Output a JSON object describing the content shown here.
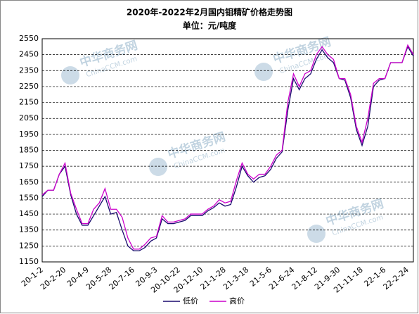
{
  "chart_data": {
    "type": "line",
    "title": "2020年-2022年2月国内钼精矿价格走势图",
    "subtitle": "单位：元/吨度",
    "watermark": {
      "name": "中华商务网",
      "site": "ChinaCCM.com"
    },
    "categories": [
      "20-1-2",
      null,
      null,
      null,
      "20-2-20",
      null,
      null,
      null,
      "20-4-9",
      null,
      null,
      null,
      "20-5-28",
      null,
      null,
      null,
      "20-7-16",
      null,
      null,
      null,
      "20-9-3",
      null,
      null,
      null,
      "20-10-22",
      null,
      null,
      null,
      "20-12-10",
      null,
      null,
      null,
      "21-1-28",
      null,
      null,
      null,
      "21-3-18",
      null,
      null,
      null,
      "21-5-6",
      null,
      null,
      null,
      "21-6-24",
      null,
      null,
      null,
      "21-8-12",
      null,
      null,
      null,
      "21-9-30",
      null,
      null,
      null,
      "21-11-18",
      null,
      null,
      null,
      "22-1-6",
      null,
      null,
      null,
      "22-2-24",
      null
    ],
    "series": [
      {
        "name": "低价",
        "color": "#1a0a6e",
        "values": [
          1560,
          1600,
          1600,
          1700,
          1750,
          1570,
          1450,
          1380,
          1380,
          1440,
          1500,
          1560,
          1450,
          1460,
          1350,
          1250,
          1220,
          1220,
          1240,
          1280,
          1300,
          1420,
          1390,
          1390,
          1400,
          1410,
          1440,
          1440,
          1440,
          1470,
          1490,
          1520,
          1500,
          1510,
          1620,
          1750,
          1690,
          1650,
          1680,
          1690,
          1730,
          1800,
          1840,
          2100,
          2300,
          2230,
          2300,
          2330,
          2420,
          2480,
          2430,
          2400,
          2300,
          2290,
          2180,
          1980,
          1880,
          2000,
          2250,
          2290,
          2300,
          2400,
          2400,
          2400,
          2500,
          2440
        ]
      },
      {
        "name": "高价",
        "color": "#cc00cc",
        "values": [
          1570,
          1600,
          1600,
          1700,
          1770,
          1580,
          1480,
          1390,
          1390,
          1480,
          1520,
          1610,
          1480,
          1480,
          1430,
          1300,
          1230,
          1230,
          1260,
          1300,
          1310,
          1440,
          1400,
          1400,
          1410,
          1420,
          1450,
          1450,
          1450,
          1480,
          1500,
          1540,
          1520,
          1530,
          1660,
          1770,
          1700,
          1670,
          1700,
          1700,
          1750,
          1820,
          1850,
          2150,
          2330,
          2250,
          2330,
          2350,
          2450,
          2500,
          2450,
          2420,
          2300,
          2300,
          2200,
          2000,
          1900,
          2050,
          2270,
          2300,
          2300,
          2400,
          2400,
          2400,
          2510,
          2450
        ]
      }
    ],
    "ylim": [
      1150,
      2550
    ],
    "yticks": [
      1150,
      1250,
      1350,
      1450,
      1550,
      1650,
      1750,
      1850,
      1950,
      2050,
      2150,
      2250,
      2350,
      2450,
      2550
    ],
    "grid": true
  }
}
